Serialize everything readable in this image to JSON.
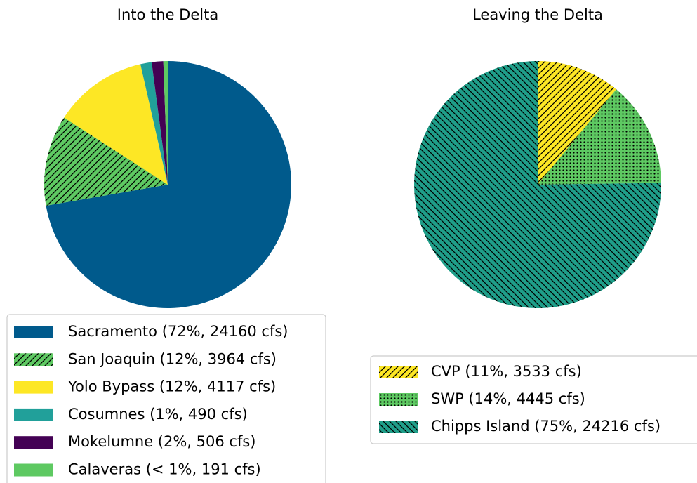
{
  "chart_data": [
    {
      "type": "pie",
      "title": "Into the Delta",
      "categories": [
        "Sacramento (72%, 24160 cfs)",
        "San Joaquin (12%, 3964 cfs)",
        "Yolo Bypass (12%, 4117 cfs)",
        "Cosumnes (1%, 490 cfs)",
        "Mokelumne (2%, 506 cfs)",
        "Calaveras (< 1%, 191 cfs)"
      ],
      "values": [
        24160,
        3964,
        4117,
        490,
        506,
        191
      ],
      "colors": [
        "#005a8c",
        "#5ec962",
        "#fde725",
        "#21a09a",
        "#440154",
        "#5ec962"
      ],
      "hatches": [
        null,
        "/",
        null,
        null,
        null,
        null
      ]
    },
    {
      "type": "pie",
      "title": "Leaving the Delta",
      "categories": [
        "CVP (11%, 3533 cfs)",
        "SWP (14%, 4445 cfs)",
        "Chipps Island (75%, 24216 cfs)"
      ],
      "values": [
        3533,
        4445,
        24216
      ],
      "colors": [
        "#fde725",
        "#5ec962",
        "#1f9e89"
      ],
      "hatches": [
        "/",
        ".",
        "\\"
      ]
    }
  ]
}
